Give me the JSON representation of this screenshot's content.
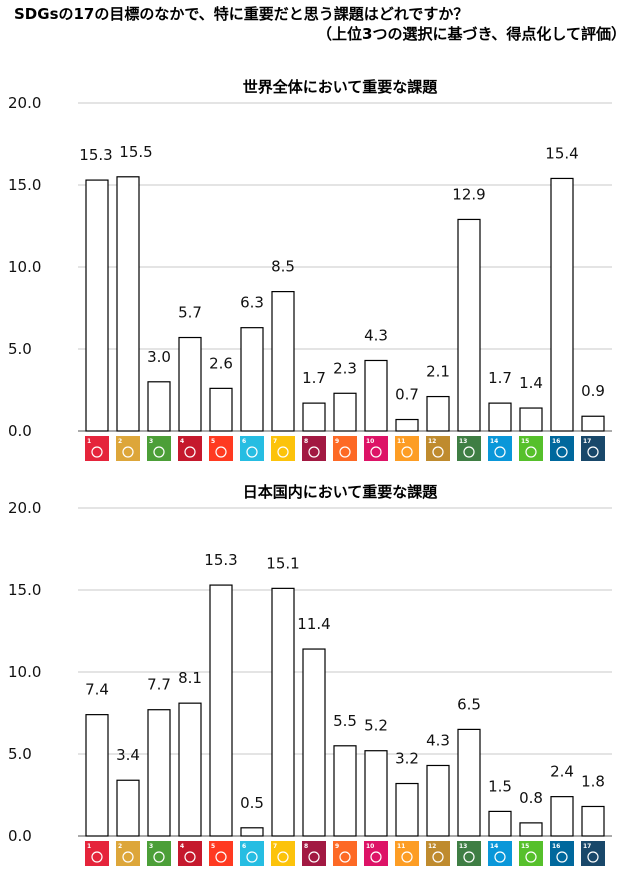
{
  "page": {
    "title_line1": "SDGsの17の目標のなかで、特に重要だと思う課題はどれですか？",
    "title_line2": "（上位3つの選択に基づき、得点化して評価）"
  },
  "goal_colors": [
    "#e5243b",
    "#dda63a",
    "#4c9f38",
    "#c5192d",
    "#ff3a21",
    "#26bde2",
    "#fcc30b",
    "#a21942",
    "#fd6925",
    "#dd1367",
    "#fd9d24",
    "#bf8b2e",
    "#3f7e44",
    "#0a97d9",
    "#56c02b",
    "#00689d",
    "#19486a"
  ],
  "goal_numbers": [
    "1",
    "2",
    "3",
    "4",
    "5",
    "6",
    "7",
    "8",
    "9",
    "10",
    "11",
    "12",
    "13",
    "14",
    "15",
    "16",
    "17"
  ],
  "chart_data": [
    {
      "type": "bar",
      "title": "世界全体において重要な課題",
      "categories": [
        "1",
        "2",
        "3",
        "4",
        "5",
        "6",
        "7",
        "8",
        "9",
        "10",
        "11",
        "12",
        "13",
        "14",
        "15",
        "16",
        "17"
      ],
      "values": [
        15.3,
        15.5,
        3.0,
        5.7,
        2.6,
        6.3,
        8.5,
        1.7,
        2.3,
        4.3,
        0.7,
        2.1,
        12.9,
        1.7,
        1.4,
        15.4,
        0.9
      ],
      "value_labels": [
        "15.3",
        "15.5",
        "3.0",
        "5.7",
        "2.6",
        "6.3",
        "8.5",
        "1.7",
        "2.3",
        "4.3",
        "0.7",
        "2.1",
        "12.9",
        "1.7",
        "1.4",
        "15.4",
        "0.9"
      ],
      "ylim": [
        0,
        20
      ],
      "yticks": [
        "0.0",
        "5.0",
        "10.0",
        "15.0",
        "20.0"
      ],
      "grid": true
    },
    {
      "type": "bar",
      "title": "日本国内において重要な課題",
      "categories": [
        "1",
        "2",
        "3",
        "4",
        "5",
        "6",
        "7",
        "8",
        "9",
        "10",
        "11",
        "12",
        "13",
        "14",
        "15",
        "16",
        "17"
      ],
      "values": [
        7.4,
        3.4,
        7.7,
        8.1,
        15.3,
        0.5,
        15.1,
        11.4,
        5.5,
        5.2,
        3.2,
        4.3,
        6.5,
        1.5,
        0.8,
        2.4,
        1.8
      ],
      "value_labels": [
        "7.4",
        "3.4",
        "7.7",
        "8.1",
        "15.3",
        "0.5",
        "15.1",
        "11.4",
        "5.5",
        "5.2",
        "3.2",
        "4.3",
        "6.5",
        "1.5",
        "0.8",
        "2.4",
        "1.8"
      ],
      "ylim": [
        0,
        20
      ],
      "yticks": [
        "0.0",
        "5.0",
        "10.0",
        "15.0",
        "20.0"
      ],
      "grid": true
    }
  ]
}
